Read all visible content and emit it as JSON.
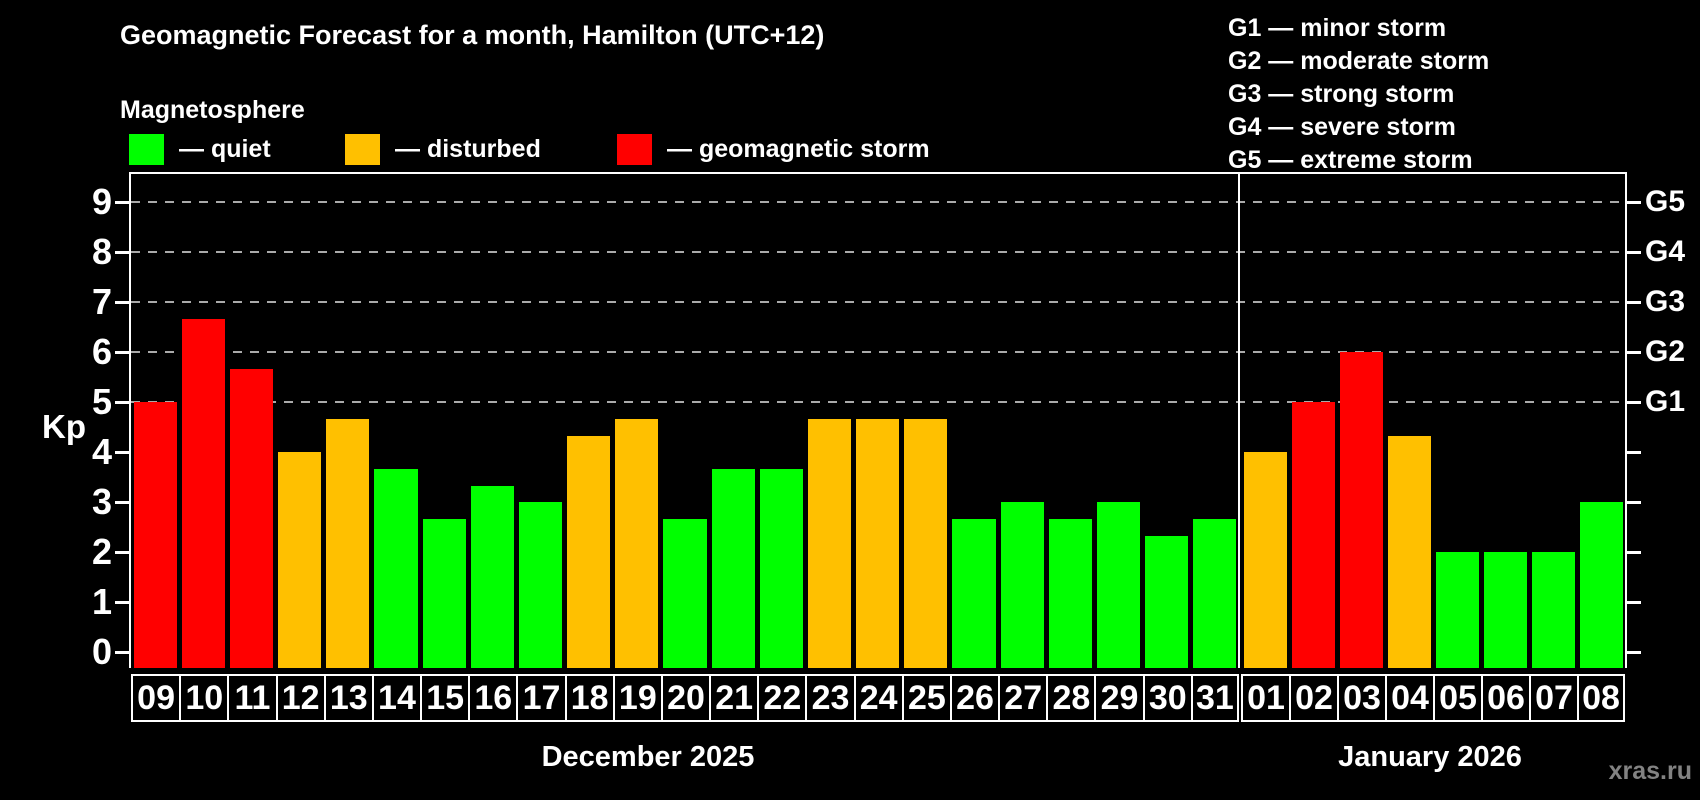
{
  "header": {
    "title": "Geomagnetic Forecast for a month, Hamilton (UTC+12)",
    "subtitle": "Magnetosphere"
  },
  "legend": {
    "items": [
      {
        "key": "quiet",
        "label": "— quiet",
        "color": "#00ff00"
      },
      {
        "key": "disturbed",
        "label": "— disturbed",
        "color": "#ffc000"
      },
      {
        "key": "storm",
        "label": "— geomagnetic storm",
        "color": "#ff0000"
      }
    ]
  },
  "g_scale_legend": {
    "lines": [
      "G1 — minor storm",
      "G2 — moderate storm",
      "G3 — strong storm",
      "G4 — severe storm",
      "G5 — extreme storm"
    ]
  },
  "watermark": "xras.ru",
  "chart_data": {
    "type": "bar",
    "title": "Geomagnetic Forecast for a month, Hamilton (UTC+12)",
    "ylabel": "Kp",
    "ylim": [
      0,
      9
    ],
    "y_ticks": [
      0,
      1,
      2,
      3,
      4,
      5,
      6,
      7,
      8,
      9
    ],
    "gridline_levels": [
      5,
      6,
      7,
      8,
      9
    ],
    "right_axis_labels": [
      {
        "kp": 5,
        "label": "G1"
      },
      {
        "kp": 6,
        "label": "G2"
      },
      {
        "kp": 7,
        "label": "G3"
      },
      {
        "kp": 8,
        "label": "G4"
      },
      {
        "kp": 9,
        "label": "G5"
      }
    ],
    "status_colors": {
      "quiet": "#00ff00",
      "disturbed": "#ffc000",
      "storm": "#ff0000"
    },
    "months": [
      {
        "name": "December 2025",
        "days": [
          {
            "label": "09",
            "kp": 5.0,
            "status": "storm"
          },
          {
            "label": "10",
            "kp": 6.67,
            "status": "storm"
          },
          {
            "label": "11",
            "kp": 5.67,
            "status": "storm"
          },
          {
            "label": "12",
            "kp": 4.0,
            "status": "disturbed"
          },
          {
            "label": "13",
            "kp": 4.67,
            "status": "disturbed"
          },
          {
            "label": "14",
            "kp": 3.67,
            "status": "quiet"
          },
          {
            "label": "15",
            "kp": 2.67,
            "status": "quiet"
          },
          {
            "label": "16",
            "kp": 3.33,
            "status": "quiet"
          },
          {
            "label": "17",
            "kp": 3.0,
            "status": "quiet"
          },
          {
            "label": "18",
            "kp": 4.33,
            "status": "disturbed"
          },
          {
            "label": "19",
            "kp": 4.67,
            "status": "disturbed"
          },
          {
            "label": "20",
            "kp": 2.67,
            "status": "quiet"
          },
          {
            "label": "21",
            "kp": 3.67,
            "status": "quiet"
          },
          {
            "label": "22",
            "kp": 3.67,
            "status": "quiet"
          },
          {
            "label": "23",
            "kp": 4.67,
            "status": "disturbed"
          },
          {
            "label": "24",
            "kp": 4.67,
            "status": "disturbed"
          },
          {
            "label": "25",
            "kp": 4.67,
            "status": "disturbed"
          },
          {
            "label": "26",
            "kp": 2.67,
            "status": "quiet"
          },
          {
            "label": "27",
            "kp": 3.0,
            "status": "quiet"
          },
          {
            "label": "28",
            "kp": 2.67,
            "status": "quiet"
          },
          {
            "label": "29",
            "kp": 3.0,
            "status": "quiet"
          },
          {
            "label": "30",
            "kp": 2.33,
            "status": "quiet"
          },
          {
            "label": "31",
            "kp": 2.67,
            "status": "quiet"
          }
        ]
      },
      {
        "name": "January 2026",
        "days": [
          {
            "label": "01",
            "kp": 4.0,
            "status": "disturbed"
          },
          {
            "label": "02",
            "kp": 5.0,
            "status": "storm"
          },
          {
            "label": "03",
            "kp": 6.0,
            "status": "storm"
          },
          {
            "label": "04",
            "kp": 4.33,
            "status": "disturbed"
          },
          {
            "label": "05",
            "kp": 2.0,
            "status": "quiet"
          },
          {
            "label": "06",
            "kp": 2.0,
            "status": "quiet"
          },
          {
            "label": "07",
            "kp": 2.0,
            "status": "quiet"
          },
          {
            "label": "08",
            "kp": 3.0,
            "status": "quiet"
          }
        ]
      }
    ]
  }
}
